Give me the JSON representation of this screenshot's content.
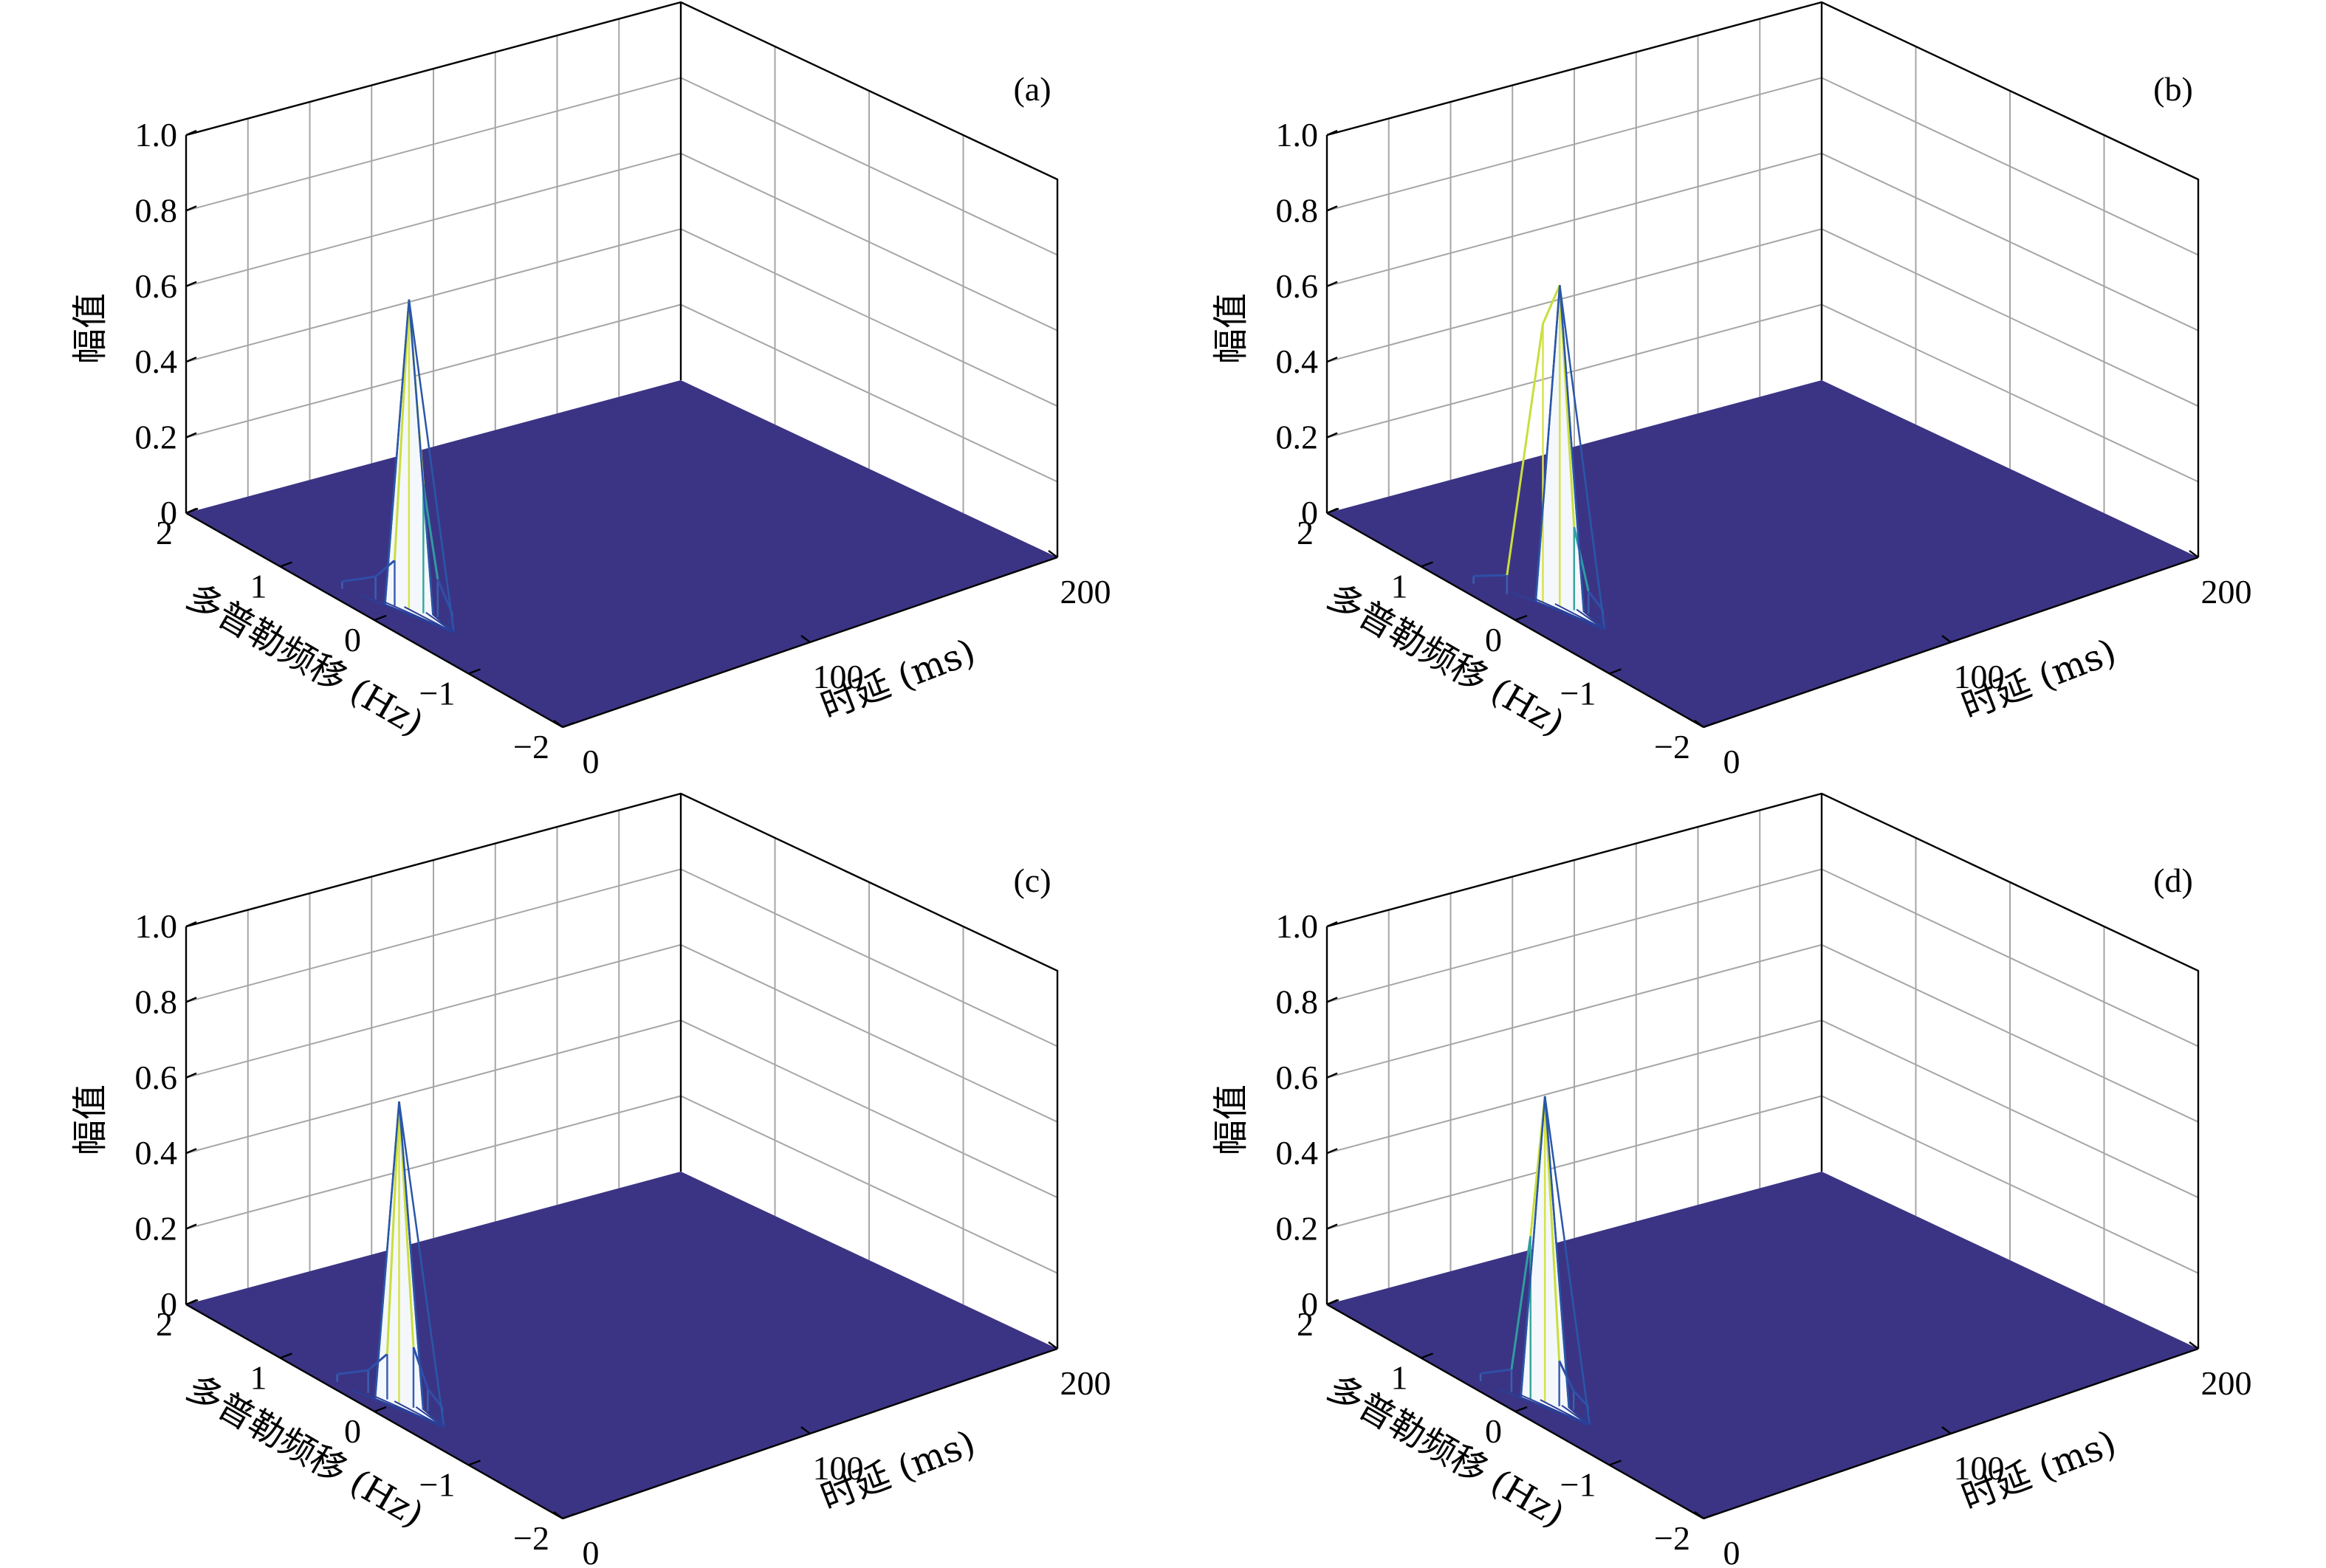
{
  "chart_data": [
    {
      "panel_label": "(a)",
      "type": "surface3d",
      "zlabel": "幅值",
      "xlabel": "时延 (ms)",
      "ylabel": "多普勒频移 (Hz)",
      "xlim": [
        0,
        200
      ],
      "ylim": [
        -2,
        2
      ],
      "zlim": [
        0,
        1.0
      ],
      "xticks": [
        "0",
        "100",
        "200"
      ],
      "yticks": [
        "2",
        "1",
        "0",
        "−1",
        "−2"
      ],
      "zticks": [
        "0",
        "0.2",
        "0.4",
        "0.6",
        "0.8",
        "1.0"
      ],
      "grid": true,
      "surface_color": "#3b3484",
      "peak": {
        "delay_ms": 14,
        "doppler_hz": 0,
        "amplitude": 0.82
      },
      "ridge": [
        {
          "delay_ms": 6,
          "doppler_hz": 0.5,
          "amplitude": 0.02
        },
        {
          "delay_ms": 10,
          "doppler_hz": 0.25,
          "amplitude": 0.06
        },
        {
          "delay_ms": 12,
          "doppler_hz": 0.1,
          "amplitude": 0.12
        },
        {
          "delay_ms": 14,
          "doppler_hz": 0,
          "amplitude": 0.82
        },
        {
          "delay_ms": 16,
          "doppler_hz": -0.1,
          "amplitude": 0.34
        },
        {
          "delay_ms": 18,
          "doppler_hz": -0.2,
          "amplitude": 0.1
        },
        {
          "delay_ms": 20,
          "doppler_hz": -0.3,
          "amplitude": 0.02
        }
      ]
    },
    {
      "panel_label": "(b)",
      "type": "surface3d",
      "zlabel": "幅值",
      "xlabel": "时延 (ms)",
      "ylabel": "多普勒频移 (Hz)",
      "xlim": [
        0,
        200
      ],
      "ylim": [
        -2,
        2
      ],
      "zlim": [
        0,
        1.0
      ],
      "xticks": [
        "0",
        "100",
        "200"
      ],
      "yticks": [
        "2",
        "1",
        "0",
        "−1",
        "−2"
      ],
      "zticks": [
        "0",
        "0.2",
        "0.4",
        "0.6",
        "0.8",
        "1.0"
      ],
      "grid": true,
      "surface_color": "#3b3484",
      "peak": {
        "delay_ms": 18,
        "doppler_hz": 0,
        "amplitude": 0.85
      },
      "ridge": [
        {
          "delay_ms": 6,
          "doppler_hz": 0.6,
          "amplitude": 0.02
        },
        {
          "delay_ms": 10,
          "doppler_hz": 0.35,
          "amplitude": 0.05
        },
        {
          "delay_ms": 15,
          "doppler_hz": 0.1,
          "amplitude": 0.74
        },
        {
          "delay_ms": 18,
          "doppler_hz": 0,
          "amplitude": 0.85
        },
        {
          "delay_ms": 20,
          "doppler_hz": -0.1,
          "amplitude": 0.22
        },
        {
          "delay_ms": 22,
          "doppler_hz": -0.2,
          "amplitude": 0.06
        },
        {
          "delay_ms": 24,
          "doppler_hz": -0.3,
          "amplitude": 0.02
        }
      ]
    },
    {
      "panel_label": "(c)",
      "type": "surface3d",
      "zlabel": "幅值",
      "xlabel": "时延 (ms)",
      "ylabel": "多普勒频移 (Hz)",
      "xlim": [
        0,
        200
      ],
      "ylim": [
        -2,
        2
      ],
      "zlim": [
        0,
        1.0
      ],
      "xticks": [
        "0",
        "100",
        "200"
      ],
      "yticks": [
        "2",
        "1",
        "0",
        "−1",
        "−2"
      ],
      "zticks": [
        "0",
        "0.2",
        "0.4",
        "0.6",
        "0.8",
        "1.0"
      ],
      "grid": true,
      "surface_color": "#3b3484",
      "peak": {
        "delay_ms": 10,
        "doppler_hz": 0,
        "amplitude": 0.8
      },
      "ridge": [
        {
          "delay_ms": 4,
          "doppler_hz": 0.5,
          "amplitude": 0.02
        },
        {
          "delay_ms": 7,
          "doppler_hz": 0.25,
          "amplitude": 0.06
        },
        {
          "delay_ms": 9,
          "doppler_hz": 0.1,
          "amplitude": 0.12
        },
        {
          "delay_ms": 10,
          "doppler_hz": 0,
          "amplitude": 0.8
        },
        {
          "delay_ms": 12,
          "doppler_hz": -0.1,
          "amplitude": 0.16
        },
        {
          "delay_ms": 14,
          "doppler_hz": -0.2,
          "amplitude": 0.06
        },
        {
          "delay_ms": 16,
          "doppler_hz": -0.3,
          "amplitude": 0.02
        }
      ]
    },
    {
      "panel_label": "(d)",
      "type": "surface3d",
      "zlabel": "幅值",
      "xlabel": "时延 (ms)",
      "ylabel": "多普勒频移 (Hz)",
      "xlim": [
        0,
        200
      ],
      "ylim": [
        -2,
        2
      ],
      "zlim": [
        0,
        1.0
      ],
      "xticks": [
        "0",
        "100",
        "200"
      ],
      "yticks": [
        "2",
        "1",
        "0",
        "−1",
        "−2"
      ],
      "zticks": [
        "0",
        "0.2",
        "0.4",
        "0.6",
        "0.8",
        "1.0"
      ],
      "grid": true,
      "surface_color": "#3b3484",
      "peak": {
        "delay_ms": 12,
        "doppler_hz": 0,
        "amplitude": 0.81
      },
      "ridge": [
        {
          "delay_ms": 5,
          "doppler_hz": 0.5,
          "amplitude": 0.02
        },
        {
          "delay_ms": 8,
          "doppler_hz": 0.25,
          "amplitude": 0.06
        },
        {
          "delay_ms": 10,
          "doppler_hz": 0.1,
          "amplitude": 0.43
        },
        {
          "delay_ms": 12,
          "doppler_hz": 0,
          "amplitude": 0.81
        },
        {
          "delay_ms": 14,
          "doppler_hz": -0.1,
          "amplitude": 0.12
        },
        {
          "delay_ms": 16,
          "doppler_hz": -0.2,
          "amplitude": 0.05
        },
        {
          "delay_ms": 18,
          "doppler_hz": -0.3,
          "amplitude": 0.02
        }
      ]
    }
  ]
}
